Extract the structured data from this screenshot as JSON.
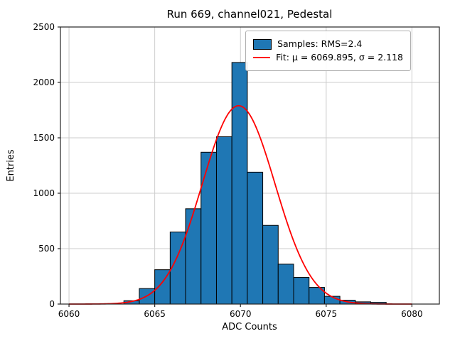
{
  "title": "Run 669, channel021, Pedestal",
  "xlabel": "ADC Counts",
  "ylabel": "Entries",
  "legend": {
    "samples": "Samples: RMS=2.4",
    "fit": "Fit: μ = 6069.895, σ = 2.118"
  },
  "colors": {
    "bar": "#1f77b4",
    "bar_edge": "#000000",
    "fit_line": "#ff0000",
    "grid": "#cccccc",
    "frame": "#262626"
  },
  "chart_data": {
    "type": "bar",
    "subtype": "histogram-with-gaussian-fit",
    "title": "Run 669, channel021, Pedestal",
    "xlabel": "ADC Counts",
    "ylabel": "Entries",
    "bins": {
      "start": 6063.2,
      "width": 0.9,
      "counts": [
        30,
        140,
        310,
        650,
        860,
        1370,
        1510,
        2180,
        1190,
        710,
        360,
        240,
        150,
        70,
        35,
        20,
        15
      ]
    },
    "fit": {
      "mu": 6069.895,
      "sigma": 2.118,
      "amplitude": 1790,
      "x_range": [
        6060,
        6080
      ]
    },
    "rms": 2.4,
    "x_ticks": [
      6060,
      6065,
      6070,
      6075,
      6080
    ],
    "y_ticks": [
      0,
      500,
      1000,
      1500,
      2000,
      2500
    ],
    "xlim": [
      6059.5,
      6081.6
    ],
    "ylim": [
      0,
      2500
    ],
    "grid": true,
    "legend_position": "upper right"
  }
}
